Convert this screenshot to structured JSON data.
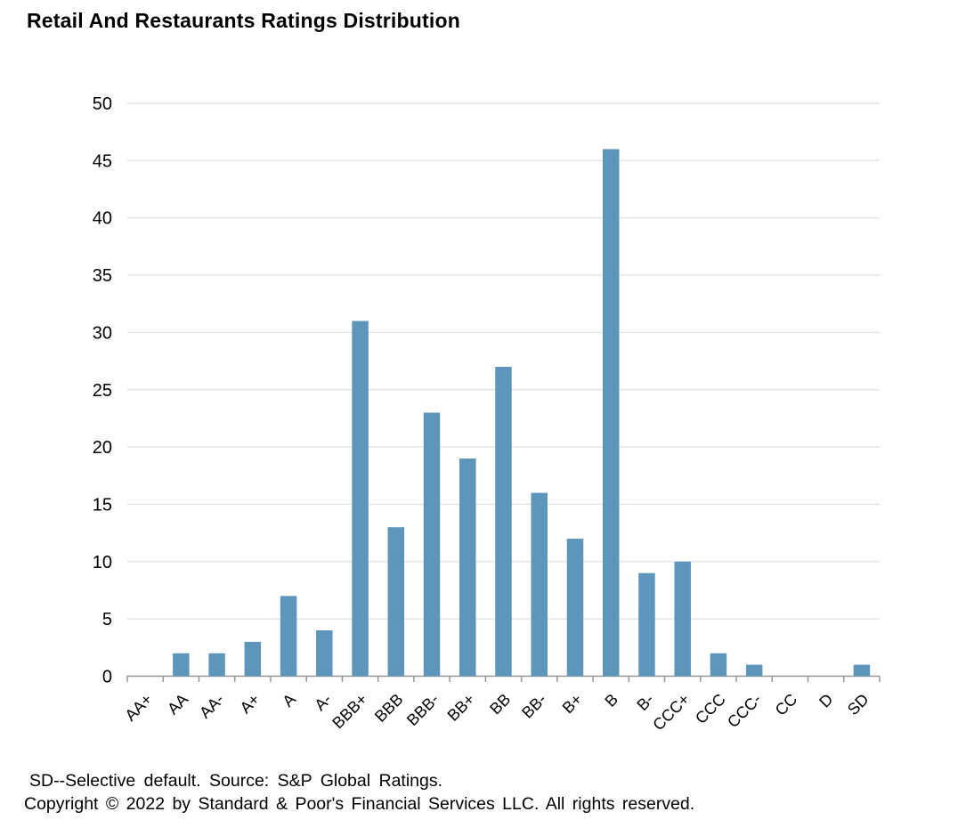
{
  "header": {
    "title": "Retail And Restaurants Ratings Distribution"
  },
  "chart_data": {
    "type": "bar",
    "title": "Retail And Restaurants Ratings Distribution",
    "categories": [
      "AA+",
      "AA",
      "AA-",
      "A+",
      "A",
      "A-",
      "BBB+",
      "BBB",
      "BBB-",
      "BB+",
      "BB",
      "BB-",
      "B+",
      "B",
      "B-",
      "CCC+",
      "CCC",
      "CCC-",
      "CC",
      "D",
      "SD"
    ],
    "values": [
      0,
      2,
      2,
      3,
      7,
      4,
      31,
      13,
      23,
      19,
      27,
      16,
      12,
      46,
      9,
      10,
      2,
      1,
      0,
      0,
      1
    ],
    "xlabel": "",
    "ylabel": "",
    "ylim": [
      0,
      50
    ],
    "yticks": [
      0,
      5,
      10,
      15,
      20,
      25,
      30,
      35,
      40,
      45,
      50
    ],
    "grid": "horizontal",
    "legend_position": "none",
    "bar_color": "#5E95BA",
    "gridline_color": "#E4E4E4",
    "axis_color": "#979797",
    "label_color": "#000000"
  },
  "footer": {
    "note": "SD--Selective default. Source: S&P Global Ratings.",
    "copyright": "Copyright © 2022 by Standard & Poor's Financial Services LLC. All rights reserved."
  }
}
